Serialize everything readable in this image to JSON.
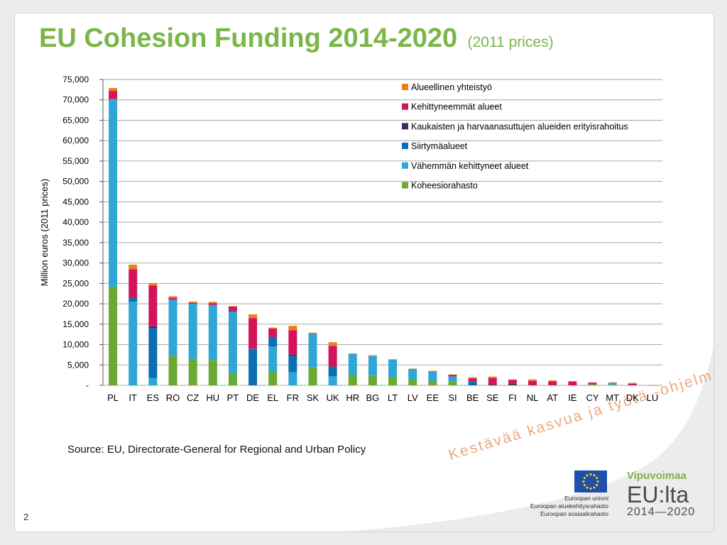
{
  "title": "EU Cohesion Funding 2014-2020",
  "subtitle": "(2011 prices)",
  "source": "Source: EU, Directorate-General for Regional and Urban Policy",
  "page_number": "2",
  "watermark": "Kestävää kasvua ja työtä -ohjelma",
  "eu_logo": {
    "line1": "Euroopan unioni",
    "line2": "Euroopan aluekehitysrahasto",
    "line3": "Euroopan sosiaalirahasto",
    "flag_color": "#1f4fa8",
    "star_color": "#ffdd00"
  },
  "program_logo": {
    "line1": "Vipuvoimaa",
    "line2": "EU:lta",
    "line3": "2014—2020"
  },
  "colors": {
    "title": "#7ab648",
    "grid": "#a6a6a6"
  },
  "chart_data": {
    "type": "bar",
    "stacked": true,
    "ylabel": "Million euros (2011 prices)",
    "xlabel": "",
    "ylim": [
      0,
      75000
    ],
    "yticks": [
      "-",
      "5,000",
      "10,000",
      "15,000",
      "20,000",
      "25,000",
      "30,000",
      "35,000",
      "40,000",
      "45,000",
      "50,000",
      "55,000",
      "60,000",
      "65,000",
      "70,000",
      "75,000"
    ],
    "grid": true,
    "legend_position": "top-right",
    "categories": [
      "PL",
      "IT",
      "ES",
      "RO",
      "CZ",
      "HU",
      "PT",
      "DE",
      "EL",
      "FR",
      "SK",
      "UK",
      "HR",
      "BG",
      "LT",
      "LV",
      "EE",
      "SI",
      "BE",
      "SE",
      "FI",
      "NL",
      "AT",
      "IE",
      "CY",
      "MT",
      "DK",
      "LU"
    ],
    "series": [
      {
        "name": "Koheesiorahasto",
        "color": "#6aaa32",
        "values": [
          24200,
          0,
          0,
          7200,
          6500,
          6200,
          3000,
          0,
          3300,
          0,
          4400,
          0,
          2600,
          2300,
          2100,
          1400,
          1100,
          900,
          0,
          0,
          0,
          0,
          0,
          0,
          270,
          220,
          0,
          0
        ]
      },
      {
        "name": "Vähemmän kehittyneet alueet",
        "color": "#2ea6d6",
        "values": [
          46000,
          20500,
          1800,
          13800,
          13500,
          13500,
          15000,
          0,
          6200,
          3200,
          8300,
          2200,
          5100,
          4900,
          4200,
          2600,
          2400,
          1300,
          0,
          0,
          0,
          0,
          0,
          0,
          0,
          490,
          0,
          0
        ]
      },
      {
        "name": "Siirtymäalueet",
        "color": "#0b6fb3",
        "values": [
          0,
          1000,
          12200,
          0,
          0,
          0,
          200,
          9000,
          2400,
          4000,
          0,
          2400,
          0,
          0,
          0,
          0,
          0,
          0,
          1000,
          0,
          0,
          0,
          70,
          0,
          0,
          0,
          80,
          0
        ]
      },
      {
        "name": "Kaukaisten ja harvaanasuttujen alueiden erityisrahoitus",
        "color": "#3d2a6b",
        "values": [
          0,
          0,
          480,
          0,
          0,
          0,
          100,
          0,
          0,
          400,
          0,
          0,
          0,
          0,
          0,
          0,
          0,
          0,
          0,
          200,
          300,
          0,
          0,
          0,
          0,
          0,
          0,
          0
        ]
      },
      {
        "name": "Kehittyneemmät alueet",
        "color": "#d4145a",
        "values": [
          2000,
          7000,
          10000,
          400,
          200,
          400,
          1000,
          7500,
          2000,
          5900,
          0,
          5100,
          0,
          0,
          0,
          0,
          0,
          400,
          700,
          1600,
          1000,
          1100,
          900,
          900,
          400,
          0,
          300,
          50
        ]
      },
      {
        "name": "Alueellinen yhteistyö",
        "color": "#f07d1a",
        "values": [
          700,
          1100,
          600,
          450,
          340,
          360,
          120,
          900,
          250,
          1100,
          220,
          870,
          140,
          170,
          110,
          90,
          60,
          70,
          270,
          340,
          160,
          360,
          250,
          150,
          60,
          16,
          230,
          20
        ]
      }
    ]
  }
}
